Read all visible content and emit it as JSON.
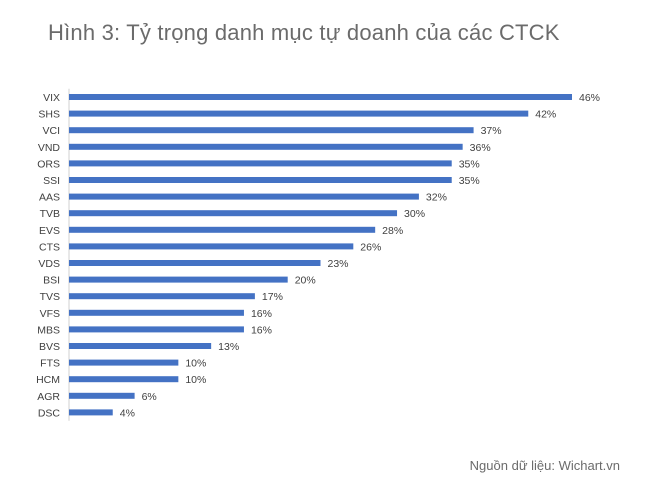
{
  "title": "Hình 3: Tỷ trọng danh mục tự doanh của các CTCK",
  "source": "Nguồn dữ liệu: Wichart.vn",
  "chart_data": {
    "type": "bar",
    "orientation": "horizontal",
    "categories": [
      "VIX",
      "SHS",
      "VCI",
      "VND",
      "ORS",
      "SSI",
      "AAS",
      "TVB",
      "EVS",
      "CTS",
      "VDS",
      "BSI",
      "TVS",
      "VFS",
      "MBS",
      "BVS",
      "FTS",
      "HCM",
      "AGR",
      "DSC"
    ],
    "values": [
      46,
      42,
      37,
      36,
      35,
      35,
      32,
      30,
      28,
      26,
      23,
      20,
      17,
      16,
      16,
      13,
      10,
      10,
      6,
      4
    ],
    "value_labels": [
      "46%",
      "42%",
      "37%",
      "36%",
      "35%",
      "35%",
      "32%",
      "30%",
      "28%",
      "26%",
      "23%",
      "20%",
      "17%",
      "16%",
      "16%",
      "13%",
      "10%",
      "10%",
      "6%",
      "4%"
    ],
    "bar_color": "#4472c4",
    "xlim": [
      0,
      46
    ],
    "grid": false,
    "legend": false
  }
}
